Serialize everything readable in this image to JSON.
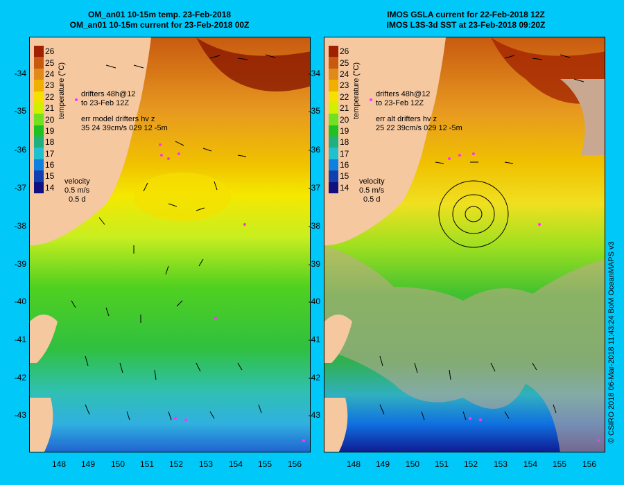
{
  "left_panel": {
    "title_line1": "OM_an01 10-15m temp. 23-Feb-2018",
    "title_line2": "OM_an01 10-15m current for 23-Feb-2018 00Z",
    "annotation_drifters_line1": "drifters 48h@12",
    "annotation_drifters_line2": "to 23-Feb 12Z",
    "annotation_err_line1": "err model drifters hv z",
    "annotation_err_line2": "35 24 39cm/s 029 12 -5m",
    "velocity_label": "velocity",
    "velocity_scale": "0.5 m/s",
    "velocity_time": "0.5 d"
  },
  "right_panel": {
    "title_line1": "IMOS GSLA current for 22-Feb-2018 12Z",
    "title_line2": "IMOS L3S-3d SST at 23-Feb-2018 09:20Z",
    "annotation_drifters_line1": "drifters 48h@12",
    "annotation_drifters_line2": "to 23-Feb 12Z",
    "annotation_err_line1": "err alt drifters hv z",
    "annotation_err_line2": "25 22 39cm/s 029 12 -5m",
    "velocity_label": "velocity",
    "velocity_scale": "0.5 m/s",
    "velocity_time": "0.5 d"
  },
  "colorbar": {
    "title": "temperature (°C)",
    "ticks": [
      "26",
      "25",
      "24",
      "23",
      "22",
      "21",
      "20",
      "19",
      "18",
      "17",
      "16",
      "15",
      "14"
    ],
    "colors": [
      "#a02000",
      "#c85a10",
      "#e08a1a",
      "#f0b000",
      "#f5e000",
      "#d0f000",
      "#70e020",
      "#20c020",
      "#20b080",
      "#20c0d0",
      "#1080e0",
      "#1040b0",
      "#101080"
    ]
  },
  "axes": {
    "y_labels": [
      "-34",
      "-35",
      "-36",
      "-37",
      "-38",
      "-39",
      "-40",
      "-41",
      "-42",
      "-43"
    ],
    "x_labels": [
      "148",
      "149",
      "150",
      "151",
      "152",
      "153",
      "154",
      "155",
      "156"
    ]
  },
  "credit": "© CSIRO 2018   06-Mar-2018 11:43:24 BoM OceanMAPS v3"
}
